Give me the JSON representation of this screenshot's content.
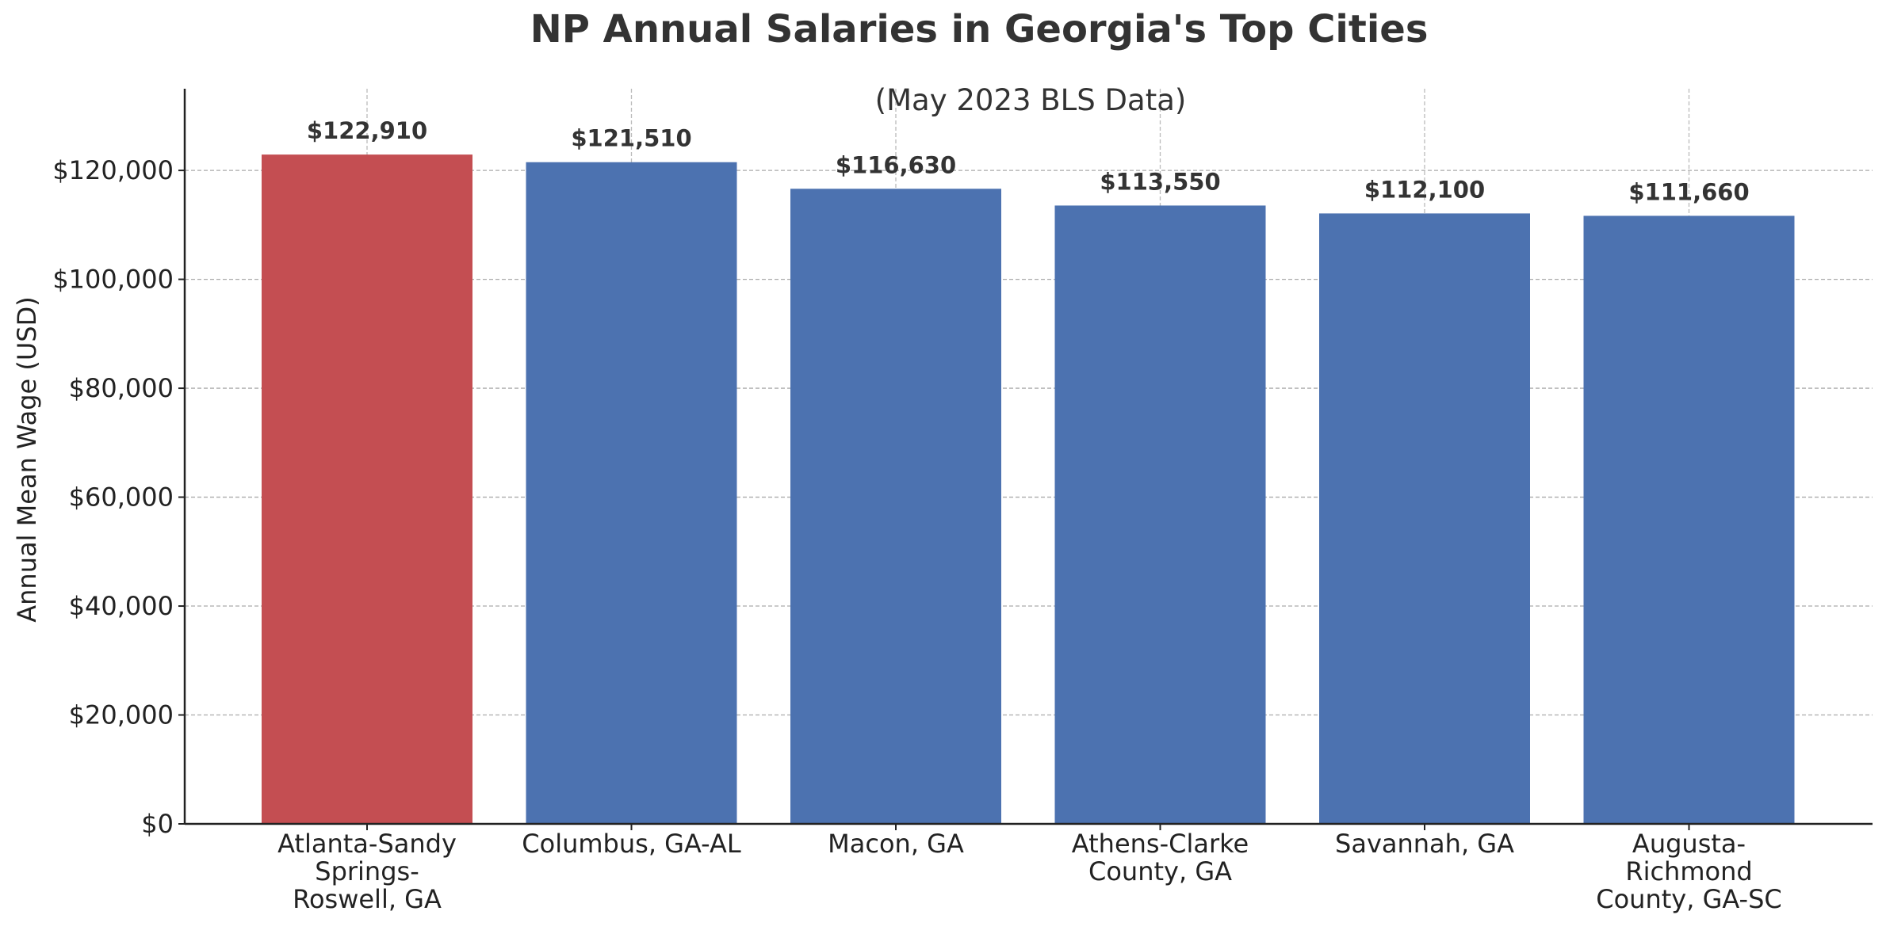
{
  "chart_data": {
    "type": "bar",
    "title": "NP Annual Salaries in Georgia's Top Cities",
    "subtitle": "(May 2023 BLS Data)",
    "xlabel": "",
    "ylabel": "Annual Mean Wage (USD)",
    "categories": [
      [
        "Atlanta-Sandy",
        "Springs-",
        "Roswell, GA"
      ],
      [
        "Columbus, GA-AL"
      ],
      [
        "Macon, GA"
      ],
      [
        "Athens-Clarke",
        "County, GA"
      ],
      [
        "Savannah, GA"
      ],
      [
        "Augusta-",
        "Richmond",
        "County, GA-SC"
      ]
    ],
    "values": [
      122910,
      121510,
      116630,
      113550,
      112100,
      111660
    ],
    "data_labels": [
      "$122,910",
      "$121,510",
      "$116,630",
      "$113,550",
      "$112,100",
      "$111,660"
    ],
    "bar_colors": [
      "#C44E52",
      "#4C72B0",
      "#4C72B0",
      "#4C72B0",
      "#4C72B0",
      "#4C72B0"
    ],
    "highlight_color": "#C44E52",
    "default_color": "#4C72B0",
    "ylim": [
      0,
      135000
    ],
    "yticks": [
      0,
      20000,
      40000,
      60000,
      80000,
      100000,
      120000
    ],
    "ytick_labels": [
      "$0",
      "$20,000",
      "$40,000",
      "$60,000",
      "$80,000",
      "$100,000",
      "$120,000"
    ],
    "grid": true,
    "legend": "none"
  }
}
